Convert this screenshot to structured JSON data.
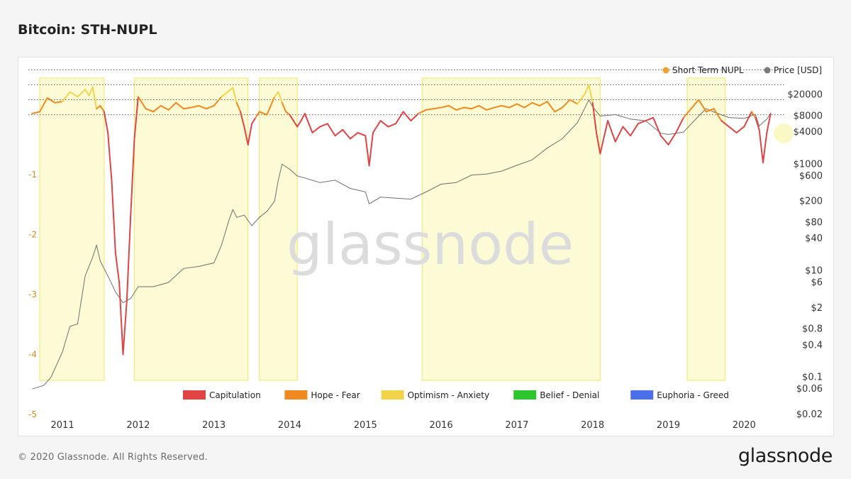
{
  "page": {
    "title": "Bitcoin: STH-NUPL",
    "copyright": "© 2020 Glassnode. All Rights Reserved.",
    "logo": "glassnode",
    "watermark": "glassnode"
  },
  "chart_data": {
    "type": "line",
    "title": "Bitcoin: STH-NUPL",
    "x_ticks": [
      "2011",
      "2012",
      "2013",
      "2014",
      "2015",
      "2016",
      "2017",
      "2018",
      "2019",
      "2020"
    ],
    "y_left": {
      "ticks": [
        -1,
        -2,
        -3,
        -4,
        -5
      ],
      "range": [
        -5,
        0.6
      ]
    },
    "y_right": {
      "scale": "log",
      "ticks": [
        "$20000",
        "$8000",
        "$4000",
        "$1000",
        "$600",
        "$200",
        "$80",
        "$40",
        "$10",
        "$6",
        "$2",
        "$0.8",
        "$0.4",
        "$0.1",
        "$0.06",
        "$0.02"
      ],
      "range": [
        0.02,
        40000
      ]
    },
    "top_legend": [
      {
        "name": "Short Term NUPL",
        "color": "#f0a030"
      },
      {
        "name": "Price [USD]",
        "color": "#7a7a7a"
      }
    ],
    "bottom_legend": [
      {
        "name": "Capitulation",
        "color": "#e04444"
      },
      {
        "name": "Hope - Fear",
        "color": "#f08a20"
      },
      {
        "name": "Optimism - Anxiety",
        "color": "#f2d44a"
      },
      {
        "name": "Belief - Denial",
        "color": "#2ec62e"
      },
      {
        "name": "Euphoria - Greed",
        "color": "#4a6fe8"
      }
    ],
    "zone_colors": {
      "capitulation": "#e04444",
      "hope": "#f08a20",
      "optimism": "#f2d44a",
      "belief": "#2ec62e",
      "euphoria": "#4a6fe8"
    },
    "highlight_periods": [
      [
        2010.7,
        2011.55
      ],
      [
        2011.95,
        2013.45
      ],
      [
        2013.6,
        2014.1
      ],
      [
        2015.75,
        2018.1
      ],
      [
        2019.25,
        2019.75
      ]
    ],
    "series": [
      {
        "name": "Short Term NUPL",
        "x": [
          2010.6,
          2010.7,
          2010.8,
          2010.9,
          2011.0,
          2011.1,
          2011.2,
          2011.3,
          2011.35,
          2011.4,
          2011.45,
          2011.5,
          2011.55,
          2011.6,
          2011.65,
          2011.7,
          2011.75,
          2011.8,
          2011.85,
          2011.9,
          2011.95,
          2012.0,
          2012.1,
          2012.2,
          2012.3,
          2012.4,
          2012.5,
          2012.6,
          2012.7,
          2012.8,
          2012.9,
          2013.0,
          2013.1,
          2013.2,
          2013.25,
          2013.3,
          2013.35,
          2013.4,
          2013.45,
          2013.5,
          2013.55,
          2013.6,
          2013.7,
          2013.8,
          2013.85,
          2013.9,
          2013.95,
          2014.0,
          2014.1,
          2014.15,
          2014.2,
          2014.3,
          2014.4,
          2014.5,
          2014.6,
          2014.7,
          2014.8,
          2014.9,
          2015.0,
          2015.05,
          2015.1,
          2015.2,
          2015.3,
          2015.4,
          2015.5,
          2015.6,
          2015.7,
          2015.8,
          2015.9,
          2016.0,
          2016.1,
          2016.2,
          2016.3,
          2016.4,
          2016.5,
          2016.6,
          2016.7,
          2016.8,
          2016.9,
          2017.0,
          2017.1,
          2017.2,
          2017.3,
          2017.4,
          2017.5,
          2017.6,
          2017.7,
          2017.8,
          2017.9,
          2017.95,
          2018.0,
          2018.05,
          2018.1,
          2018.2,
          2018.3,
          2018.4,
          2018.5,
          2018.6,
          2018.7,
          2018.8,
          2018.9,
          2019.0,
          2019.1,
          2019.2,
          2019.3,
          2019.4,
          2019.5,
          2019.6,
          2019.7,
          2019.8,
          2019.9,
          2020.0,
          2020.1,
          2020.15,
          2020.2,
          2020.25,
          2020.3,
          2020.35
        ],
        "y": [
          0.02,
          0.05,
          0.28,
          0.2,
          0.22,
          0.38,
          0.3,
          0.42,
          0.32,
          0.46,
          0.1,
          0.15,
          0.05,
          -0.3,
          -1.1,
          -2.3,
          -2.8,
          -4.0,
          -3.1,
          -1.7,
          -0.4,
          0.3,
          0.1,
          0.05,
          0.15,
          0.08,
          0.2,
          0.1,
          0.12,
          0.15,
          0.1,
          0.15,
          0.3,
          0.4,
          0.45,
          0.2,
          0.05,
          -0.2,
          -0.5,
          -0.15,
          -0.05,
          0.05,
          0.0,
          0.3,
          0.38,
          0.2,
          0.05,
          0.0,
          -0.2,
          -0.1,
          0.02,
          -0.3,
          -0.2,
          -0.15,
          -0.35,
          -0.25,
          -0.4,
          -0.3,
          -0.35,
          -0.85,
          -0.3,
          -0.1,
          -0.2,
          -0.15,
          0.05,
          -0.1,
          0.02,
          0.08,
          0.1,
          0.12,
          0.15,
          0.08,
          0.12,
          0.1,
          0.15,
          0.08,
          0.12,
          0.15,
          0.12,
          0.18,
          0.12,
          0.2,
          0.15,
          0.22,
          0.05,
          0.12,
          0.25,
          0.18,
          0.35,
          0.5,
          0.2,
          -0.3,
          -0.65,
          -0.1,
          -0.45,
          -0.2,
          -0.35,
          -0.15,
          -0.1,
          -0.05,
          -0.35,
          -0.5,
          -0.3,
          -0.05,
          0.1,
          0.25,
          0.05,
          0.1,
          -0.1,
          -0.2,
          -0.3,
          -0.2,
          0.05,
          -0.05,
          -0.25,
          -0.8,
          -0.3,
          0.02
        ]
      },
      {
        "name": "Price [USD]",
        "x": [
          2010.6,
          2010.75,
          2010.85,
          2011.0,
          2011.1,
          2011.2,
          2011.3,
          2011.4,
          2011.45,
          2011.5,
          2011.6,
          2011.7,
          2011.8,
          2011.9,
          2012.0,
          2012.2,
          2012.4,
          2012.6,
          2012.8,
          2013.0,
          2013.1,
          2013.2,
          2013.25,
          2013.3,
          2013.4,
          2013.5,
          2013.6,
          2013.7,
          2013.8,
          2013.85,
          2013.9,
          2014.0,
          2014.1,
          2014.2,
          2014.4,
          2014.6,
          2014.8,
          2015.0,
          2015.05,
          2015.2,
          2015.4,
          2015.6,
          2015.8,
          2016.0,
          2016.2,
          2016.4,
          2016.6,
          2016.8,
          2017.0,
          2017.2,
          2017.4,
          2017.6,
          2017.8,
          2017.95,
          2018.0,
          2018.1,
          2018.3,
          2018.5,
          2018.7,
          2018.9,
          2019.0,
          2019.2,
          2019.4,
          2019.5,
          2019.6,
          2019.8,
          2020.0,
          2020.15,
          2020.2,
          2020.3,
          2020.35
        ],
        "y": [
          0.06,
          0.07,
          0.1,
          0.3,
          0.9,
          1.0,
          8,
          18,
          30,
          15,
          8,
          4,
          2.5,
          3,
          5,
          5,
          6,
          11,
          12,
          14,
          30,
          90,
          140,
          100,
          110,
          70,
          100,
          130,
          200,
          500,
          1000,
          800,
          600,
          550,
          450,
          500,
          350,
          300,
          180,
          240,
          230,
          220,
          300,
          420,
          450,
          620,
          650,
          740,
          950,
          1200,
          2000,
          3000,
          6000,
          16000,
          12000,
          8000,
          8500,
          7000,
          6500,
          3800,
          3600,
          4000,
          8000,
          11000,
          9500,
          7500,
          7200,
          8600,
          5200,
          7000,
          8800
        ]
      }
    ]
  }
}
